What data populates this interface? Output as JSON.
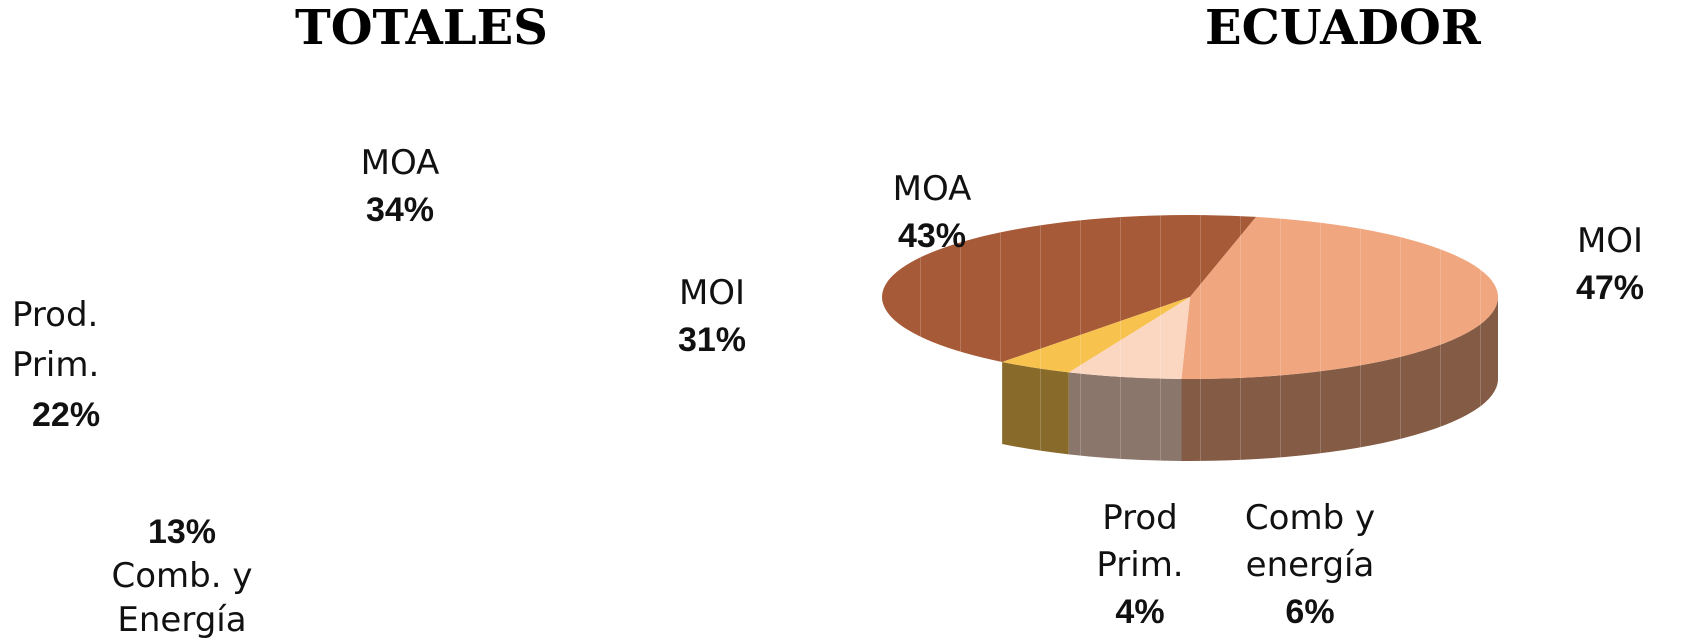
{
  "chart_data": [
    {
      "type": "pie",
      "title": "TOTALES",
      "categories": [
        "MOA",
        "MOI",
        "Prod. Prim.",
        "Comb. y Energía"
      ],
      "values": [
        34,
        31,
        22,
        13
      ],
      "labels": [
        {
          "name": "MOA",
          "pct": "34%"
        },
        {
          "name": "MOI",
          "pct": "31%"
        },
        {
          "name": "Prod. Prim.",
          "pct": "22%"
        },
        {
          "name": "Comb. y Energía",
          "pct": "13%"
        }
      ]
    },
    {
      "type": "pie",
      "style": "3d",
      "title": "ECUADOR",
      "categories": [
        "MOA",
        "MOI",
        "Prod Prim.",
        "Comb y energía"
      ],
      "values": [
        43,
        47,
        4,
        6
      ],
      "colors": [
        "#a75a38",
        "#f0a67e",
        "#f7c24e",
        "#fbd7c2"
      ],
      "labels": [
        {
          "name": "MOA",
          "pct": "43%"
        },
        {
          "name": "MOI",
          "pct": "47%"
        },
        {
          "name": "Prod Prim.",
          "pct": "4%"
        },
        {
          "name": "Comb y energía",
          "pct": "6%"
        }
      ]
    }
  ]
}
